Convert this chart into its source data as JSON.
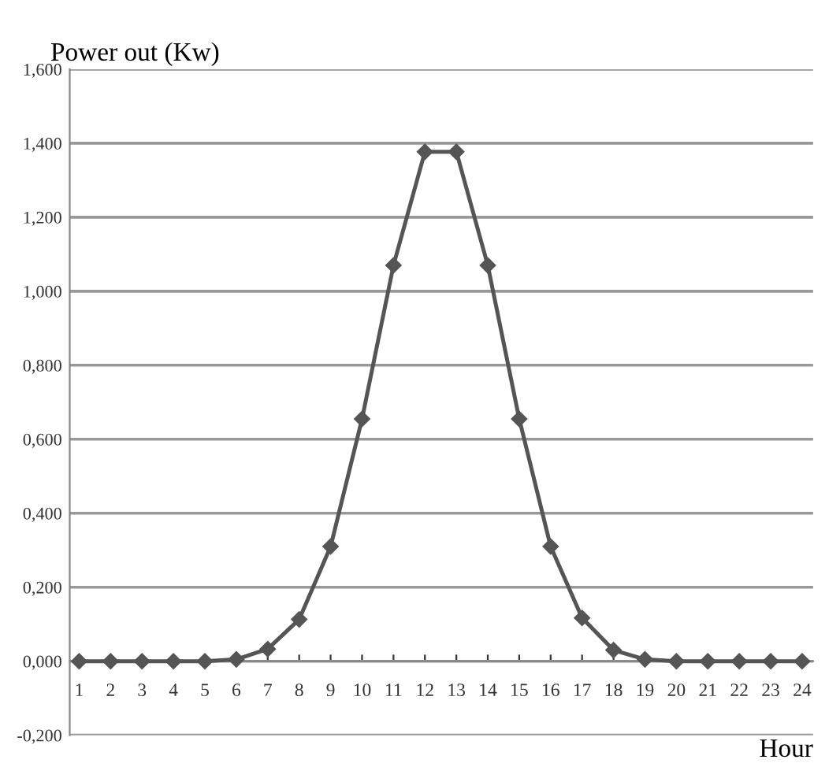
{
  "chart_data": {
    "type": "line",
    "ylabel": "Power out (Kw)",
    "xlabel": "Hour",
    "categories": [
      "1",
      "2",
      "3",
      "4",
      "5",
      "6",
      "7",
      "8",
      "9",
      "10",
      "11",
      "12",
      "13",
      "14",
      "15",
      "16",
      "17",
      "18",
      "19",
      "20",
      "21",
      "22",
      "23",
      "24"
    ],
    "series": [
      {
        "color": "#555555",
        "values": [
          0,
          0,
          0,
          0,
          0,
          0.005,
          0.033,
          0.113,
          0.31,
          0.655,
          1.07,
          1.377,
          1.377,
          1.07,
          0.655,
          0.31,
          0.117,
          0.03,
          0.005,
          0,
          0,
          0,
          0,
          0
        ]
      }
    ],
    "ylim": [
      -0.2,
      1.6
    ],
    "yticks": [
      {
        "value": -0.2,
        "label": "-0,200"
      },
      {
        "value": 0,
        "label": "0,000"
      },
      {
        "value": 0.2,
        "label": "0,200"
      },
      {
        "value": 0.4,
        "label": "0,400"
      },
      {
        "value": 0.6,
        "label": "0,600"
      },
      {
        "value": 0.8,
        "label": "0,800"
      },
      {
        "value": 1.0,
        "label": "1,000"
      },
      {
        "value": 1.2,
        "label": "1,200"
      },
      {
        "value": 1.4,
        "label": "1,400"
      },
      {
        "value": 1.6,
        "label": "1,600"
      }
    ],
    "grid": "y",
    "marker": "diamond",
    "line_style": "solid",
    "legend": false
  }
}
